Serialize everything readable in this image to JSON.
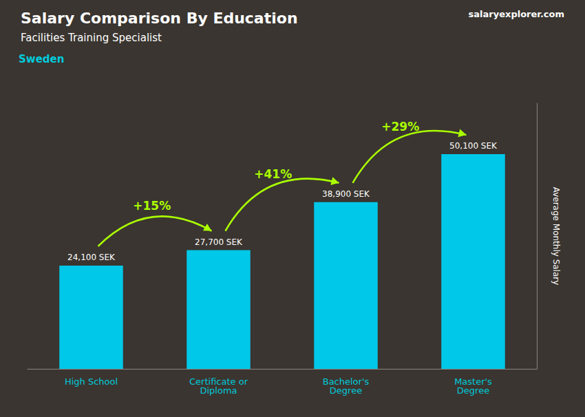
{
  "chart_data": {
    "type": "bar",
    "title": "Salary Comparison By Education",
    "subtitle": "Facilities Training Specialist",
    "y_label": "Average Monthly Salary",
    "categories": [
      "High School",
      "Certificate or\nDiploma",
      "Bachelor's\nDegree",
      "Master's\nDegree"
    ],
    "values": [
      24100,
      27700,
      38900,
      50100
    ],
    "value_labels": [
      "24,100 SEK",
      "27,700 SEK",
      "38,900 SEK",
      "50,100 SEK"
    ],
    "data_labels": true,
    "color": "#00c8e8",
    "ylim": [
      0,
      62000
    ],
    "tick_labels": "x",
    "grid": false,
    "annotations": [
      {
        "text": "Sweden"
      },
      {
        "text": "salaryexplorer.com"
      },
      {
        "text": "+15%",
        "from": "High School",
        "to": "Certificate or\nDiploma"
      },
      {
        "text": "+41%",
        "from": "Certificate or\nDiploma",
        "to": "Bachelor's\nDegree"
      },
      {
        "text": "+29%",
        "from": "Bachelor's\nDegree",
        "to": "Master's\nDegree"
      }
    ]
  }
}
